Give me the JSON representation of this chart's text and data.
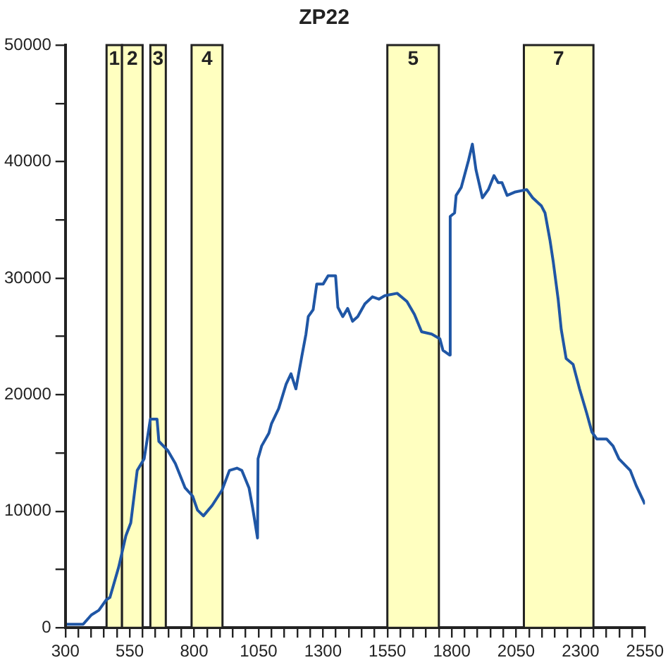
{
  "chart_data": {
    "type": "line",
    "title": "ZP22",
    "x": [
      306,
      369,
      401,
      430,
      459,
      473,
      507,
      535,
      554,
      579,
      606,
      630,
      656,
      663,
      698,
      727,
      765,
      794,
      813,
      836,
      870,
      908,
      937,
      966,
      985,
      1013,
      1027,
      1046,
      1048,
      1062,
      1090,
      1100,
      1128,
      1157,
      1176,
      1195,
      1218,
      1234,
      1243,
      1262,
      1276,
      1301,
      1320,
      1349,
      1358,
      1377,
      1396,
      1415,
      1435,
      1463,
      1492,
      1517,
      1540,
      1588,
      1626,
      1655,
      1683,
      1722,
      1754,
      1766,
      1792,
      1794,
      1811,
      1817,
      1837,
      1865,
      1880,
      1894,
      1919,
      1942,
      1964,
      1980,
      1995,
      2015,
      2047,
      2091,
      2114,
      2148,
      2162,
      2181,
      2194,
      2213,
      2225,
      2244,
      2271,
      2296,
      2324,
      2344,
      2363,
      2401,
      2426,
      2449,
      2493,
      2516,
      2550
    ],
    "series": [
      {
        "color": "#1f56a5",
        "values": [
          300,
          300,
          1100,
          1500,
          2400,
          2600,
          5200,
          7900,
          9000,
          13500,
          14500,
          17900,
          17900,
          16000,
          15200,
          14100,
          12000,
          11300,
          10100,
          9600,
          10500,
          11800,
          13500,
          13700,
          13500,
          12000,
          10300,
          7700,
          14500,
          15600,
          16700,
          17500,
          18800,
          20900,
          21800,
          20500,
          23300,
          25200,
          26700,
          27300,
          29500,
          29500,
          30200,
          30200,
          27500,
          26700,
          27400,
          26300,
          26700,
          27800,
          28400,
          28200,
          28500,
          28700,
          28000,
          26900,
          25400,
          25200,
          24800,
          23800,
          23400,
          35300,
          35600,
          37100,
          37800,
          40100,
          41500,
          39300,
          36900,
          37600,
          38800,
          38200,
          38200,
          37100,
          37400,
          37600,
          36900,
          36200,
          35600,
          33300,
          31400,
          28200,
          25600,
          23100,
          22600,
          20500,
          18400,
          16800,
          16200,
          16200,
          15600,
          14500,
          13500,
          12200,
          10600
        ]
      }
    ],
    "xlim": [
      300,
      2550
    ],
    "xticks": [
      300,
      {
        "value": 350,
        "label": null
      },
      {
        "value": 400,
        "label": null
      },
      {
        "value": 450,
        "label": null
      },
      {
        "value": 500,
        "label": null
      },
      550,
      {
        "value": 600,
        "label": null
      },
      {
        "value": 650,
        "label": null
      },
      {
        "value": 700,
        "label": null
      },
      {
        "value": 750,
        "label": null
      },
      800,
      {
        "value": 850,
        "label": null
      },
      {
        "value": 900,
        "label": null
      },
      {
        "value": 950,
        "label": null
      },
      {
        "value": 1000,
        "label": null
      },
      1050,
      {
        "value": 1100,
        "label": null
      },
      {
        "value": 1150,
        "label": null
      },
      {
        "value": 1200,
        "label": null
      },
      {
        "value": 1250,
        "label": null
      },
      1300,
      {
        "value": 1350,
        "label": null
      },
      {
        "value": 1400,
        "label": null
      },
      {
        "value": 1450,
        "label": null
      },
      {
        "value": 1500,
        "label": null
      },
      1550,
      {
        "value": 1600,
        "label": null
      },
      {
        "value": 1650,
        "label": null
      },
      {
        "value": 1700,
        "label": null
      },
      {
        "value": 1750,
        "label": null
      },
      1800,
      {
        "value": 1850,
        "label": null
      },
      {
        "value": 1900,
        "label": null
      },
      {
        "value": 1950,
        "label": null
      },
      {
        "value": 2000,
        "label": null
      },
      2050,
      {
        "value": 2100,
        "label": null
      },
      {
        "value": 2150,
        "label": null
      },
      {
        "value": 2200,
        "label": null
      },
      {
        "value": 2250,
        "label": null
      },
      2300,
      {
        "value": 2350,
        "label": null
      },
      {
        "value": 2400,
        "label": null
      },
      {
        "value": 2450,
        "label": null
      },
      {
        "value": 2500,
        "label": null
      },
      2550
    ],
    "ylim": [
      0,
      50000
    ],
    "yticks": [
      0,
      {
        "value": 5000,
        "label": null
      },
      10000,
      {
        "value": 15000,
        "label": null
      },
      20000,
      {
        "value": 25000,
        "label": null
      },
      30000,
      {
        "value": 35000,
        "label": null
      },
      40000,
      {
        "value": 45000,
        "label": null
      },
      50000
    ],
    "bands": [
      {
        "axis": "x",
        "from": 460,
        "to": 520,
        "label": "1",
        "color": "#ffffc0"
      },
      {
        "axis": "x",
        "from": 520,
        "to": 600,
        "label": "2",
        "color": "#ffffc0"
      },
      {
        "axis": "x",
        "from": 630,
        "to": 690,
        "label": "3",
        "color": "#ffffc0"
      },
      {
        "axis": "x",
        "from": 790,
        "to": 910,
        "label": "4",
        "color": "#ffffc0"
      },
      {
        "axis": "x",
        "from": 1550,
        "to": 1750,
        "label": "5",
        "color": "#ffffc0"
      },
      {
        "axis": "x",
        "from": 2080,
        "to": 2350,
        "label": "7",
        "color": "#ffffc0"
      }
    ],
    "grid": false,
    "legend": false,
    "marker": "none",
    "line_style": "solid"
  }
}
